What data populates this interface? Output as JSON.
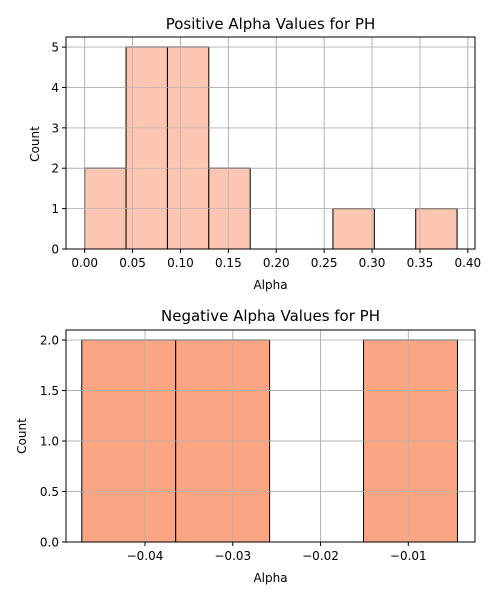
{
  "chart_data": [
    {
      "type": "bar",
      "title": "Positive Alpha Values for PH",
      "xlabel": "Alpha",
      "ylabel": "Count",
      "bar_color": "#fdc6b2",
      "edge_color": "#000000",
      "xlim": [
        -0.0195,
        0.4075
      ],
      "ylim": [
        0,
        5.25
      ],
      "grid": true,
      "bins": [
        {
          "start": 0.0,
          "end": 0.0432,
          "count": 2
        },
        {
          "start": 0.0432,
          "end": 0.0864,
          "count": 5
        },
        {
          "start": 0.0864,
          "end": 0.1296,
          "count": 5
        },
        {
          "start": 0.1296,
          "end": 0.1728,
          "count": 2
        },
        {
          "start": 0.1728,
          "end": 0.216,
          "count": 0
        },
        {
          "start": 0.216,
          "end": 0.2592,
          "count": 0
        },
        {
          "start": 0.2592,
          "end": 0.3024,
          "count": 1
        },
        {
          "start": 0.3024,
          "end": 0.3456,
          "count": 0
        },
        {
          "start": 0.3456,
          "end": 0.3888,
          "count": 1
        }
      ],
      "xticks": [
        {
          "v": 0.0,
          "label": "0.00"
        },
        {
          "v": 0.05,
          "label": "0.05"
        },
        {
          "v": 0.1,
          "label": "0.10"
        },
        {
          "v": 0.15,
          "label": "0.15"
        },
        {
          "v": 0.2,
          "label": "0.20"
        },
        {
          "v": 0.25,
          "label": "0.25"
        },
        {
          "v": 0.3,
          "label": "0.30"
        },
        {
          "v": 0.35,
          "label": "0.35"
        },
        {
          "v": 0.4,
          "label": "0.40"
        }
      ],
      "yticks": [
        {
          "v": 0,
          "label": "0"
        },
        {
          "v": 1,
          "label": "1"
        },
        {
          "v": 2,
          "label": "2"
        },
        {
          "v": 3,
          "label": "3"
        },
        {
          "v": 4,
          "label": "4"
        },
        {
          "v": 5,
          "label": "5"
        }
      ]
    },
    {
      "type": "bar",
      "title": "Negative Alpha Values for PH",
      "xlabel": "Alpha",
      "ylabel": "Count",
      "bar_color": "#fca583",
      "edge_color": "#000000",
      "xlim": [
        -0.049,
        -0.0024
      ],
      "ylim": [
        0,
        2.1
      ],
      "grid": true,
      "bins": [
        {
          "start": -0.0472,
          "end": -0.0365,
          "count": 2
        },
        {
          "start": -0.0365,
          "end": -0.0258,
          "count": 2
        },
        {
          "start": -0.0258,
          "end": -0.0151,
          "count": 0
        },
        {
          "start": -0.0151,
          "end": -0.0044,
          "count": 2
        }
      ],
      "xticks": [
        {
          "v": -0.04,
          "label": "−0.04"
        },
        {
          "v": -0.03,
          "label": "−0.03"
        },
        {
          "v": -0.02,
          "label": "−0.02"
        },
        {
          "v": -0.01,
          "label": "−0.01"
        }
      ],
      "yticks": [
        {
          "v": 0,
          "label": "0.0"
        },
        {
          "v": 0.5,
          "label": "0.5"
        },
        {
          "v": 1.0,
          "label": "1.0"
        },
        {
          "v": 1.5,
          "label": "1.5"
        },
        {
          "v": 2.0,
          "label": "2.0"
        }
      ]
    }
  ]
}
